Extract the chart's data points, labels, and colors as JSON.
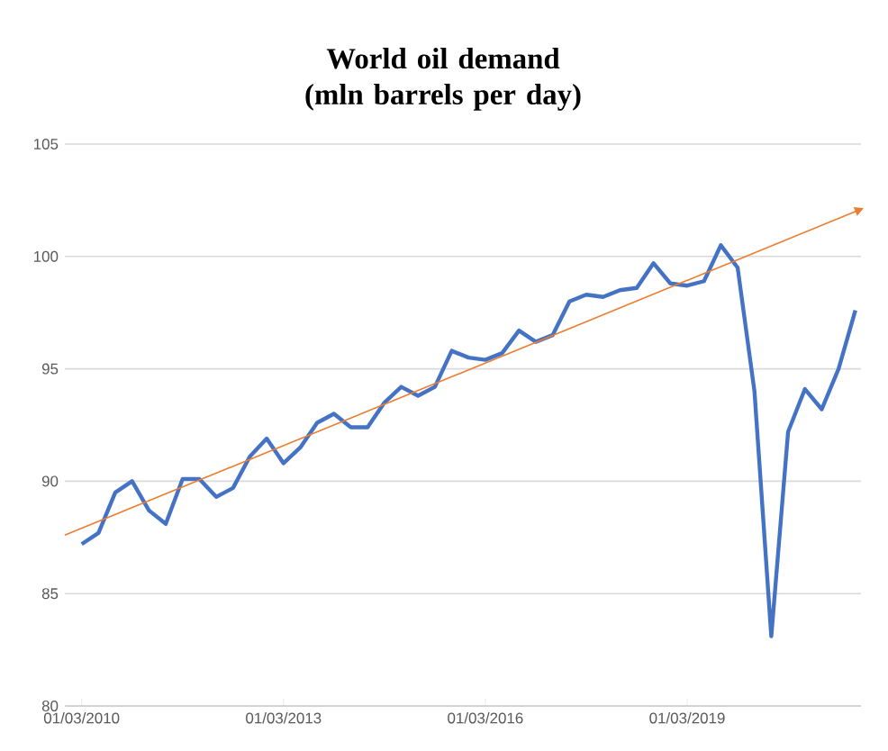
{
  "chart_data": {
    "type": "line",
    "title": "World oil demand (mln barrels per day)",
    "x": [
      "2010-03",
      "2010-06",
      "2010-09",
      "2010-12",
      "2011-03",
      "2011-06",
      "2011-09",
      "2011-12",
      "2012-03",
      "2012-06",
      "2012-09",
      "2012-12",
      "2013-03",
      "2013-06",
      "2013-09",
      "2013-12",
      "2014-03",
      "2014-06",
      "2014-09",
      "2014-12",
      "2015-03",
      "2015-06",
      "2015-09",
      "2015-12",
      "2016-03",
      "2016-06",
      "2016-09",
      "2016-12",
      "2017-03",
      "2017-06",
      "2017-09",
      "2017-12",
      "2018-03",
      "2018-06",
      "2018-09",
      "2018-12",
      "2019-03",
      "2019-06",
      "2019-09",
      "2019-12",
      "2020-03",
      "2020-06",
      "2020-09",
      "2020-12",
      "2021-03",
      "2021-06",
      "2021-09"
    ],
    "series": [
      {
        "color": "#4472c4",
        "values": [
          87.2,
          87.7,
          89.5,
          90.0,
          88.7,
          88.1,
          90.1,
          90.1,
          89.3,
          89.7,
          91.1,
          91.9,
          90.8,
          91.5,
          92.6,
          93.0,
          92.4,
          92.4,
          93.5,
          94.2,
          93.8,
          94.2,
          95.8,
          95.5,
          95.4,
          95.7,
          96.7,
          96.2,
          96.5,
          98.0,
          98.3,
          98.2,
          98.5,
          98.6,
          99.7,
          98.8,
          98.7,
          98.9,
          100.5,
          99.5,
          94.0,
          83.1,
          92.2,
          94.1,
          93.2,
          95.0,
          97.6
        ]
      },
      {
        "type": "line",
        "color": "#ed7d31",
        "x": [
          "2009-12",
          "2021-09"
        ],
        "values": [
          87.6,
          102.0
        ]
      }
    ],
    "xlim": [
      "2009-12",
      "2021-10"
    ],
    "xticks": [
      {
        "value": "2010-03",
        "label": "01/03/2010"
      },
      {
        "value": "2013-03",
        "label": "01/03/2013"
      },
      {
        "value": "2016-03",
        "label": "01/03/2016"
      },
      {
        "value": "2019-03",
        "label": "01/03/2019"
      }
    ],
    "ylim": [
      80,
      105
    ],
    "yticks": [
      80,
      85,
      90,
      95,
      100,
      105
    ],
    "grid": "y",
    "line_style": "solid"
  }
}
